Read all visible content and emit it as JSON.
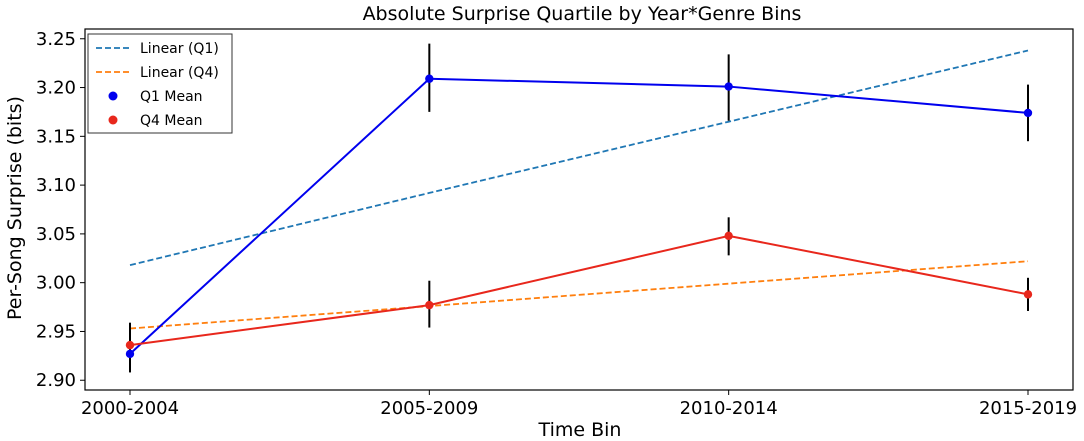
{
  "chart_data": {
    "type": "line",
    "title": "Absolute Surprise Quartile by Year*Genre Bins",
    "xlabel": "Time Bin",
    "ylabel": "Per-Song Surprise (bits)",
    "categories": [
      "2000-2004",
      "2005-2009",
      "2010-2014",
      "2015-2019"
    ],
    "ylim": [
      2.89,
      3.26
    ],
    "yticks": [
      2.9,
      2.95,
      3.0,
      3.05,
      3.1,
      3.15,
      3.2,
      3.25
    ],
    "ytick_labels": [
      "2.90",
      "2.95",
      "3.00",
      "3.05",
      "3.10",
      "3.15",
      "3.20",
      "3.25"
    ],
    "grid": false,
    "legend": {
      "position": "top-left",
      "entries": [
        "Linear (Q1)",
        "Linear (Q4)",
        "Q1 Mean",
        "Q4 Mean"
      ]
    },
    "series": [
      {
        "name": "Q1 Mean",
        "color": "#0000ee",
        "values": [
          2.927,
          3.209,
          3.201,
          3.174
        ],
        "err_low": [
          2.908,
          3.175,
          3.166,
          3.145
        ],
        "err_high": [
          2.948,
          3.245,
          3.234,
          3.203
        ]
      },
      {
        "name": "Q4 Mean",
        "color": "#e8271c",
        "values": [
          2.936,
          2.977,
          3.048,
          2.988
        ],
        "err_low": [
          2.914,
          2.954,
          3.028,
          2.971
        ],
        "err_high": [
          2.959,
          3.002,
          3.067,
          3.005
        ]
      }
    ],
    "trendlines": [
      {
        "name": "Linear (Q1)",
        "color": "#1f77b4",
        "values": [
          3.018,
          3.092,
          3.165,
          3.238
        ]
      },
      {
        "name": "Linear (Q4)",
        "color": "#ff7f0e",
        "values": [
          2.953,
          2.976,
          2.999,
          3.022
        ]
      }
    ]
  }
}
